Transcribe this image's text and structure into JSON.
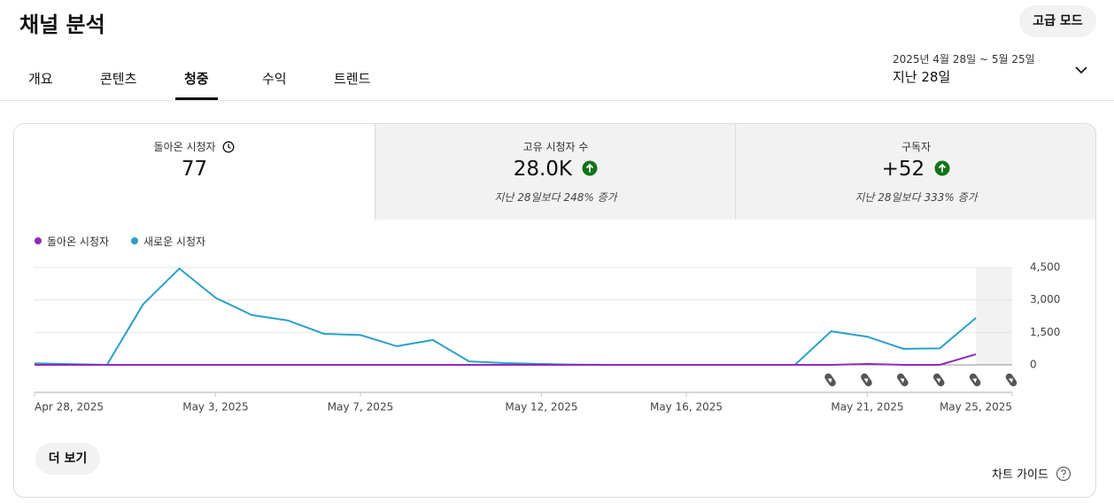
{
  "header": {
    "title": "채널 분석",
    "advanced_button": "고급 모드"
  },
  "tabs": [
    "개요",
    "콘텐츠",
    "청중",
    "수익",
    "트렌드"
  ],
  "active_tab": 2,
  "date_range": {
    "range": "2025년 4월 28일 ~ 5월 25일",
    "label": "지난 28일"
  },
  "metrics": [
    {
      "label": "돌아온 시청자",
      "value": "77"
    },
    {
      "label": "고유 시청자 수",
      "value": "28.0K",
      "change": "지난 28일보다 248% 증가"
    },
    {
      "label": "구독자",
      "value": "+52",
      "change": "지난 28일보다 333% 증가"
    }
  ],
  "chart_data": {
    "type": "line",
    "categories": [
      "Apr 28, 2025",
      null,
      null,
      null,
      null,
      "May 3, 2025",
      null,
      null,
      null,
      "May 7, 2025",
      null,
      null,
      null,
      null,
      "May 12, 2025",
      null,
      null,
      null,
      "May 16, 2025",
      null,
      null,
      null,
      null,
      "May 21, 2025",
      null,
      null,
      null,
      "May 25, 2025"
    ],
    "series": [
      {
        "name": "돌아온 시청자",
        "color": "#8e2bbd",
        "values": [
          0,
          0,
          0,
          0,
          0,
          0,
          0,
          0,
          0,
          0,
          0,
          0,
          0,
          0,
          0,
          0,
          0,
          0,
          0,
          0,
          0,
          0,
          0,
          40,
          0,
          0,
          490,
          null
        ]
      },
      {
        "name": "새로운 시청자",
        "color": "#2aa0c8",
        "values": [
          70,
          35,
          0,
          2800,
          4450,
          3100,
          2300,
          2050,
          1430,
          1380,
          860,
          1150,
          160,
          80,
          40,
          10,
          0,
          0,
          0,
          0,
          0,
          0,
          1550,
          1300,
          740,
          760,
          2170,
          null
        ]
      }
    ],
    "ylim": [
      0,
      4500
    ],
    "yticks": [
      0,
      {
        "value": 1500,
        "label": "1,500"
      },
      {
        "value": 3000,
        "label": "3,000"
      },
      {
        "value": 4500,
        "label": "4,500"
      }
    ],
    "grid": true
  },
  "footer": {
    "more_button": "더 보기",
    "chart_guide": "차트 가이드"
  }
}
